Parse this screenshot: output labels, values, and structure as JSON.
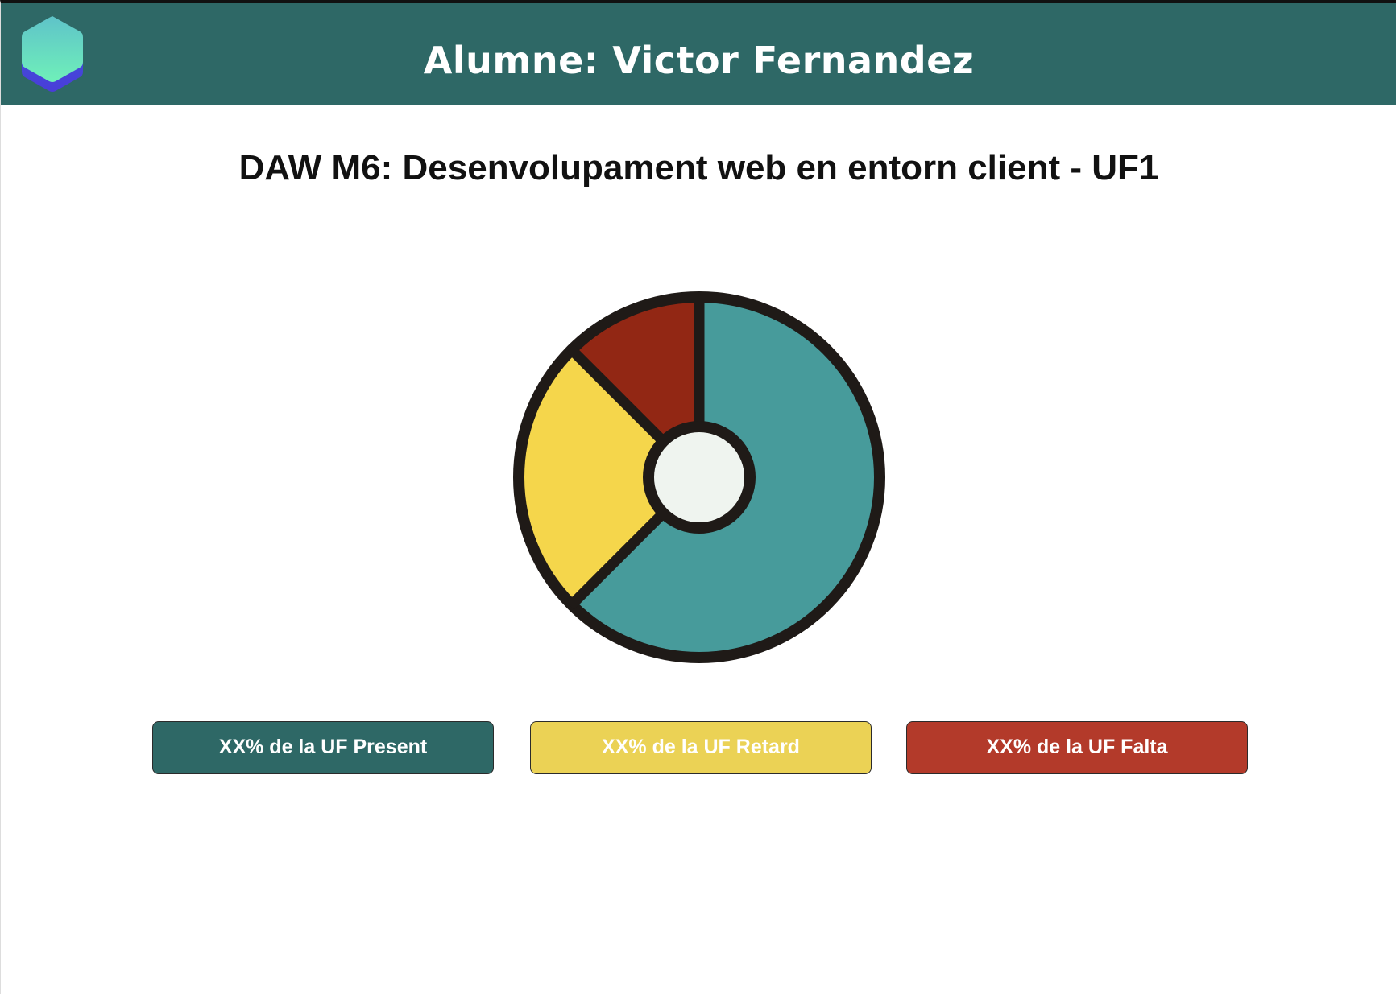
{
  "header": {
    "title": "Alumne: Victor Fernandez",
    "logo_icon": "hexagon-logo-icon"
  },
  "subject": {
    "title": "DAW M6: Desenvolupament web en entorn client - UF1"
  },
  "colors": {
    "header_bg": "#2e6866",
    "present": "#479b9b",
    "retard": "#f5d64b",
    "falta": "#922714",
    "chart_outline": "#1f1a17",
    "chart_center": "#eff4ef",
    "btn_present": "#2e6866",
    "btn_retard": "#ebd255",
    "btn_falta": "#b33a2a"
  },
  "legend": {
    "present_label": "XX% de la UF Present",
    "retard_label": "XX% de la UF Retard",
    "falta_label": "XX% de la UF Falta"
  },
  "chart_data": {
    "type": "pie",
    "categories": [
      "Present",
      "Retard",
      "Falta"
    ],
    "values": [
      62.5,
      25,
      12.5
    ],
    "title": ""
  }
}
